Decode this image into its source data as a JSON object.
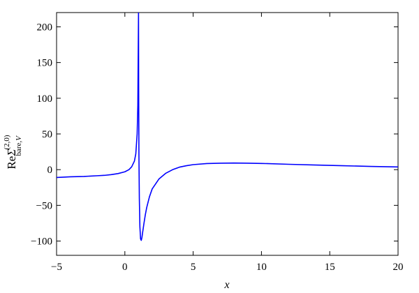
{
  "chart_data": {
    "type": "line",
    "title": "",
    "xlabel": "x",
    "ylabel": {
      "prefix": "Re",
      "symbol": "Σ",
      "superscript": "(2,0)",
      "subscript": "bare,",
      "subscript_italic": "V"
    },
    "xlim": [
      -5,
      20
    ],
    "ylim": [
      -120,
      220
    ],
    "xticks": [
      -5,
      0,
      5,
      10,
      15,
      20
    ],
    "yticks": [
      -100,
      -50,
      0,
      50,
      100,
      150,
      200
    ],
    "xtick_labels": [
      "−5",
      "0",
      "5",
      "10",
      "15",
      "20"
    ],
    "ytick_labels": [
      "−100",
      "−50",
      "0",
      "50",
      "100",
      "150",
      "200"
    ],
    "grid": false,
    "legend": "none",
    "series": [
      {
        "color": "#0000ff",
        "x": [
          -5,
          -4,
          -3,
          -2,
          -1.5,
          -1,
          -0.5,
          0,
          0.3,
          0.5,
          0.7,
          0.8,
          0.9,
          0.95,
          1.0,
          1.01,
          1.03,
          1.06,
          1.1,
          1.15,
          1.2,
          1.25,
          1.3,
          1.4,
          1.5,
          1.6,
          1.8,
          2,
          2.5,
          3,
          3.5,
          4,
          4.5,
          5,
          6,
          7,
          8,
          9,
          10,
          12,
          14,
          16,
          18,
          20
        ],
        "y": [
          -11,
          -10,
          -9.5,
          -8.5,
          -8,
          -7,
          -5.5,
          -3,
          0,
          4,
          12,
          22,
          50,
          90,
          220,
          120,
          20,
          -40,
          -80,
          -97,
          -99,
          -95,
          -88,
          -75,
          -63,
          -53,
          -38,
          -27,
          -13,
          -5,
          0,
          3.5,
          5.5,
          7,
          8.5,
          9,
          9.3,
          9,
          8.7,
          7.5,
          6.5,
          5.5,
          4.5,
          3.8
        ]
      }
    ]
  }
}
